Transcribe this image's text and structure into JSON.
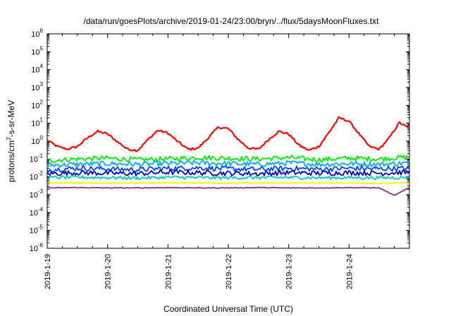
{
  "chart_data": {
    "type": "line",
    "title": "/data/run/goesPlots/archive/2019-01-24/23:00/bryn/../flux/5daysMoonFluxes.txt",
    "xlabel": "Coordinated Universal Time (UTC)",
    "ylabel": {
      "prefix": "protons/cm",
      "sup": "2",
      "suffix": "-s-sr-MeV"
    },
    "x_scale": "time",
    "y_scale": "log",
    "xlim": [
      "2019-01-19T00:00",
      "2019-01-25T00:00"
    ],
    "ylim": [
      1e-06,
      1000000.0
    ],
    "x_ticks": [
      "2019-1-19",
      "2019-1-20",
      "2019-1-21",
      "2019-1-22",
      "2019-1-23",
      "2019-1-24"
    ],
    "y_ticks": [
      {
        "base": "10",
        "exp": "-6"
      },
      {
        "base": "10",
        "exp": "-5"
      },
      {
        "base": "10",
        "exp": "-4"
      },
      {
        "base": "10",
        "exp": "-3"
      },
      {
        "base": "10",
        "exp": "-2"
      },
      {
        "base": "10",
        "exp": "-1"
      },
      {
        "base": "10",
        "exp": "0"
      },
      {
        "base": "10",
        "exp": "1"
      },
      {
        "base": "10",
        "exp": "2"
      },
      {
        "base": "10",
        "exp": "3"
      },
      {
        "base": "10",
        "exp": "4"
      },
      {
        "base": "10",
        "exp": "5"
      },
      {
        "base": "10",
        "exp": "6"
      }
    ],
    "grid": false,
    "series": [
      {
        "color": "#ff0000",
        "x": [
          "2019-01-19T00:00",
          "2019-01-19T04:00",
          "2019-01-19T08:00",
          "2019-01-19T12:00",
          "2019-01-19T16:00",
          "2019-01-19T20:00",
          "2019-01-20T00:00",
          "2019-01-20T04:00",
          "2019-01-20T08:00",
          "2019-01-20T12:00",
          "2019-01-20T16:00",
          "2019-01-20T20:00",
          "2019-01-21T00:00",
          "2019-01-21T04:00",
          "2019-01-21T08:00",
          "2019-01-21T12:00",
          "2019-01-21T16:00",
          "2019-01-21T20:00",
          "2019-01-22T00:00",
          "2019-01-22T04:00",
          "2019-01-22T08:00",
          "2019-01-22T12:00",
          "2019-01-22T16:00",
          "2019-01-22T20:00",
          "2019-01-23T00:00",
          "2019-01-23T04:00",
          "2019-01-23T08:00",
          "2019-01-23T12:00",
          "2019-01-23T16:00",
          "2019-01-23T20:00",
          "2019-01-24T00:00",
          "2019-01-24T04:00",
          "2019-01-24T08:00",
          "2019-01-24T12:00",
          "2019-01-24T16:00",
          "2019-01-24T20:00",
          "2019-01-25T00:00"
        ],
        "y": [
          1.1,
          0.5,
          0.35,
          0.5,
          1.5,
          3.5,
          2.5,
          0.9,
          0.35,
          0.3,
          1.2,
          4.0,
          2.8,
          0.9,
          0.35,
          0.4,
          1.5,
          6.0,
          5.0,
          1.2,
          0.4,
          0.35,
          1.2,
          3.5,
          2.5,
          0.6,
          0.3,
          0.5,
          3.0,
          20,
          13,
          2.5,
          0.5,
          0.35,
          1.5,
          11,
          5
        ]
      },
      {
        "color": "#00ee00",
        "x": [
          "2019-01-19T00:00",
          "2019-01-19T12:00",
          "2019-01-20T00:00",
          "2019-01-20T12:00",
          "2019-01-21T00:00",
          "2019-01-21T12:00",
          "2019-01-22T00:00",
          "2019-01-22T12:00",
          "2019-01-23T00:00",
          "2019-01-23T12:00",
          "2019-01-24T00:00",
          "2019-01-24T12:00",
          "2019-01-25T00:00"
        ],
        "y": [
          0.08,
          0.1,
          0.11,
          0.09,
          0.1,
          0.12,
          0.11,
          0.1,
          0.12,
          0.09,
          0.11,
          0.1,
          0.13
        ]
      },
      {
        "color": "#00aaff",
        "x": [
          "2019-01-19T00:00",
          "2019-01-19T12:00",
          "2019-01-20T00:00",
          "2019-01-20T12:00",
          "2019-01-21T00:00",
          "2019-01-21T12:00",
          "2019-01-22T00:00",
          "2019-01-22T12:00",
          "2019-01-23T00:00",
          "2019-01-23T12:00",
          "2019-01-24T00:00",
          "2019-01-24T12:00",
          "2019-01-25T00:00"
        ],
        "y": [
          0.045,
          0.05,
          0.055,
          0.05,
          0.055,
          0.06,
          0.055,
          0.05,
          0.06,
          0.05,
          0.055,
          0.05,
          0.06
        ]
      },
      {
        "color": "#0044ff",
        "x": [
          "2019-01-19T00:00",
          "2019-01-19T12:00",
          "2019-01-20T00:00",
          "2019-01-20T12:00",
          "2019-01-21T00:00",
          "2019-01-21T12:00",
          "2019-01-22T00:00",
          "2019-01-22T12:00",
          "2019-01-23T00:00",
          "2019-01-23T12:00",
          "2019-01-24T00:00",
          "2019-01-24T12:00",
          "2019-01-25T00:00"
        ],
        "y": [
          0.025,
          0.03,
          0.028,
          0.025,
          0.03,
          0.032,
          0.028,
          0.026,
          0.03,
          0.027,
          0.03,
          0.028,
          0.03
        ]
      },
      {
        "color": "#0000cc",
        "x": [
          "2019-01-19T00:00",
          "2019-01-19T12:00",
          "2019-01-20T00:00",
          "2019-01-20T12:00",
          "2019-01-21T00:00",
          "2019-01-21T12:00",
          "2019-01-22T00:00",
          "2019-01-22T12:00",
          "2019-01-23T00:00",
          "2019-01-23T12:00",
          "2019-01-24T00:00",
          "2019-01-24T12:00",
          "2019-01-25T00:00"
        ],
        "y": [
          0.015,
          0.017,
          0.016,
          0.015,
          0.018,
          0.017,
          0.016,
          0.015,
          0.017,
          0.016,
          0.017,
          0.016,
          0.018
        ]
      },
      {
        "color": "#00ccaa",
        "x": [
          "2019-01-19T00:00",
          "2019-01-19T12:00",
          "2019-01-20T00:00",
          "2019-01-20T12:00",
          "2019-01-21T00:00",
          "2019-01-21T12:00",
          "2019-01-22T00:00",
          "2019-01-22T12:00",
          "2019-01-23T00:00",
          "2019-01-23T12:00",
          "2019-01-24T00:00",
          "2019-01-24T12:00",
          "2019-01-25T00:00"
        ],
        "y": [
          0.009,
          0.0095,
          0.009,
          0.0085,
          0.0095,
          0.009,
          0.0088,
          0.009,
          0.0092,
          0.0088,
          0.009,
          0.0088,
          0.0092
        ]
      },
      {
        "color": "#ffee00",
        "x": [
          "2019-01-19T00:00",
          "2019-01-19T12:00",
          "2019-01-20T00:00",
          "2019-01-20T12:00",
          "2019-01-21T00:00",
          "2019-01-21T12:00",
          "2019-01-22T00:00",
          "2019-01-22T12:00",
          "2019-01-23T00:00",
          "2019-01-23T12:00",
          "2019-01-24T00:00",
          "2019-01-24T12:00",
          "2019-01-25T00:00"
        ],
        "y": [
          0.0045,
          0.0046,
          0.0044,
          0.0045,
          0.0046,
          0.0045,
          0.0044,
          0.0045,
          0.0046,
          0.0045,
          0.0045,
          0.0044,
          0.0045
        ]
      },
      {
        "color": "#883377",
        "x": [
          "2019-01-19T00:00",
          "2019-01-19T12:00",
          "2019-01-20T00:00",
          "2019-01-20T12:00",
          "2019-01-21T00:00",
          "2019-01-21T12:00",
          "2019-01-22T00:00",
          "2019-01-22T12:00",
          "2019-01-23T00:00",
          "2019-01-23T12:00",
          "2019-01-24T00:00",
          "2019-01-24T12:00",
          "2019-01-24T18:00",
          "2019-01-25T00:00"
        ],
        "y": [
          0.0024,
          0.0025,
          0.0024,
          0.0024,
          0.0025,
          0.0024,
          0.0024,
          0.0025,
          0.0024,
          0.0024,
          0.0025,
          0.0024,
          0.0009,
          0.0025
        ]
      }
    ]
  }
}
